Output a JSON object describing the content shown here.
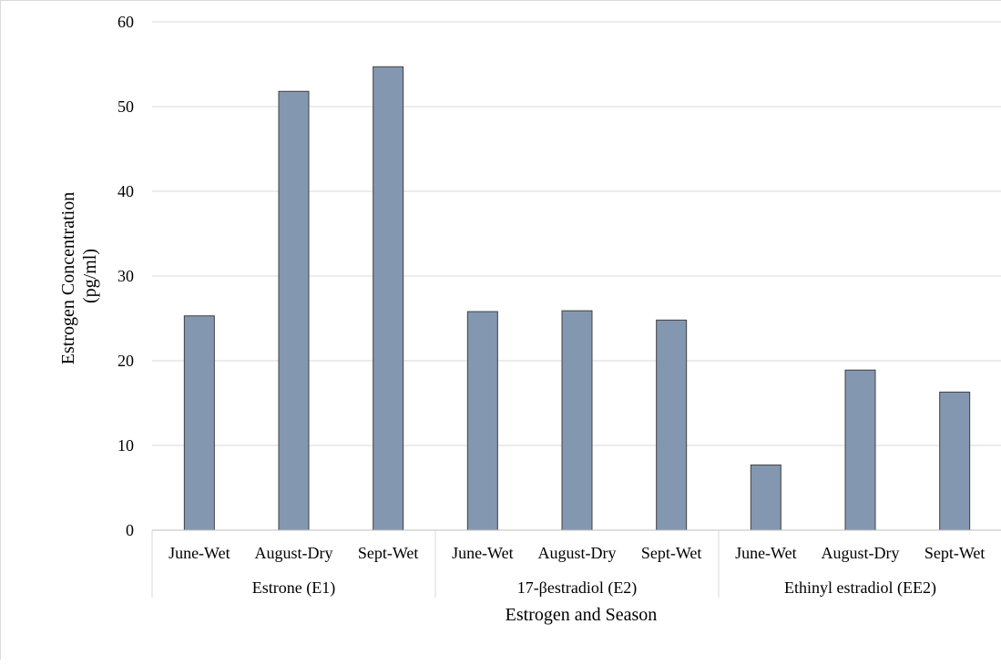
{
  "chart_data": {
    "type": "bar",
    "xlabel": "Estrogen and Season",
    "ylabel_lines": [
      "Estrogen Concentration",
      "(pg/ml)"
    ],
    "ylim": [
      0,
      60
    ],
    "yticks": [
      "0",
      "10",
      "20",
      "30",
      "40",
      "50",
      "60"
    ],
    "grid": true,
    "bar_color": "#8497b0",
    "groups": [
      {
        "name": "Estrone (E1)",
        "categories": [
          "June-Wet",
          "August-Dry",
          "Sept-Wet"
        ],
        "values": [
          25.3,
          51.8,
          54.7
        ]
      },
      {
        "name": "17-βestradiol (E2)",
        "categories": [
          "June-Wet",
          "August-Dry",
          "Sept-Wet"
        ],
        "values": [
          25.8,
          25.9,
          24.8
        ]
      },
      {
        "name": "Ethinyl estradiol (EE2)",
        "categories": [
          "June-Wet",
          "August-Dry",
          "Sept-Wet"
        ],
        "values": [
          7.7,
          18.9,
          16.3
        ]
      }
    ]
  }
}
